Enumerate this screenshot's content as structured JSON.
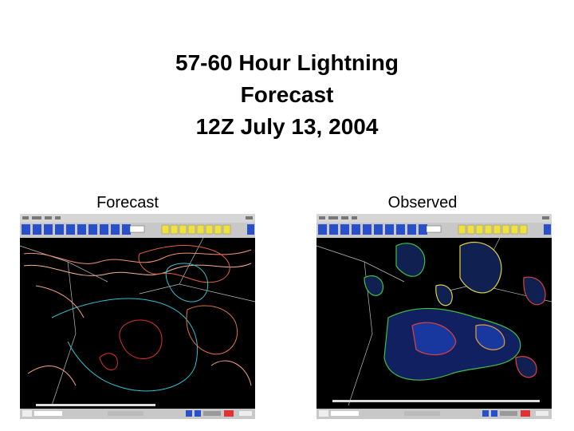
{
  "slide": {
    "title": [
      "57-60 Hour Lightning",
      "Forecast",
      "12Z July 13, 2004"
    ],
    "panels": [
      {
        "label": "Forecast"
      },
      {
        "label": "Observed"
      }
    ]
  }
}
